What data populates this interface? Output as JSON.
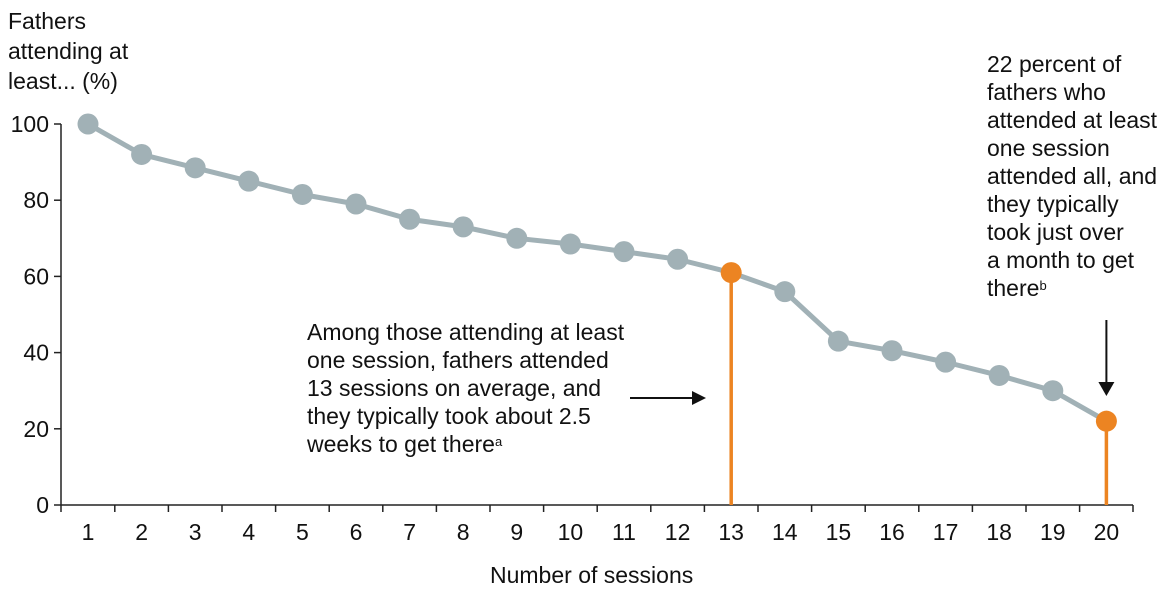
{
  "chart_data": {
    "type": "line",
    "xlabel": "Number of sessions",
    "ylabel": "Fathers attending at least... (%)",
    "ylim": [
      0,
      100
    ],
    "yticks": [
      0,
      20,
      40,
      60,
      80,
      100
    ],
    "x": [
      1,
      2,
      3,
      4,
      5,
      6,
      7,
      8,
      9,
      10,
      11,
      12,
      13,
      14,
      15,
      16,
      17,
      18,
      19,
      20
    ],
    "series": [
      {
        "values": [
          100,
          92,
          88.5,
          85,
          81.5,
          79,
          75,
          73,
          70,
          68.5,
          66.5,
          64.5,
          61,
          56,
          43,
          40.5,
          37.5,
          34,
          30,
          22
        ]
      }
    ],
    "highlighted_x": [
      13,
      20
    ],
    "colors": {
      "line": "#a1b1b6",
      "highlight": "#ec8422",
      "axis": "#222222"
    },
    "annotations": [
      {
        "text": "Among those attending at least\none session, fathers attended\n13 sessions on average, and\nthey typically took about 2.5\nweeks to get there",
        "footnote": "a",
        "points_to": 13
      },
      {
        "text": "22 percent of\nfathers who\nattended at least\none session\nattended all, and\nthey typically\ntook just over\na month to get\nthere",
        "footnote": "b",
        "points_to": 20
      }
    ]
  }
}
